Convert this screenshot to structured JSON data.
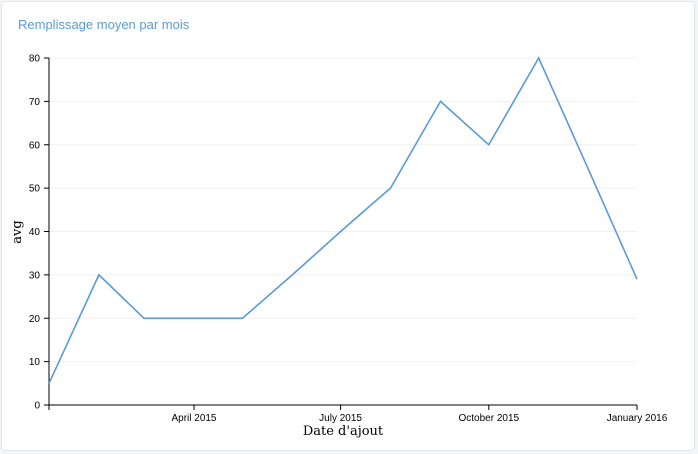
{
  "card": {
    "title": "Remplissage moyen par mois"
  },
  "colors": {
    "line": "#5a9bd4",
    "title": "#5a9bd4",
    "grid": "#f0f0f0",
    "axis": "#000000"
  },
  "chart_data": {
    "type": "line",
    "title": "Remplissage moyen par mois",
    "xlabel": "Date d'ajout",
    "ylabel": "avg",
    "xlim": [
      "2015-01-01",
      "2016-01-01"
    ],
    "ylim": [
      0,
      80
    ],
    "grid": true,
    "legend": "none",
    "x_ticks": [
      {
        "date": "2015-04-01",
        "label": "April 2015"
      },
      {
        "date": "2015-07-01",
        "label": "July 2015"
      },
      {
        "date": "2015-10-01",
        "label": "October 2015"
      },
      {
        "date": "2016-01-01",
        "label": "January 2016"
      }
    ],
    "y_ticks": [
      0,
      10,
      20,
      30,
      40,
      50,
      60,
      70,
      80
    ],
    "series": [
      {
        "x": [
          "2015-01-01",
          "2015-02-01",
          "2015-03-01",
          "2015-04-01",
          "2015-05-01",
          "2015-06-01",
          "2015-07-01",
          "2015-08-01",
          "2015-09-01",
          "2015-10-01",
          "2015-11-01",
          "2015-12-01",
          "2016-01-01"
        ],
        "values": [
          5,
          30,
          20,
          20,
          20,
          30,
          40,
          50,
          70,
          60,
          80,
          55,
          29
        ]
      }
    ]
  }
}
